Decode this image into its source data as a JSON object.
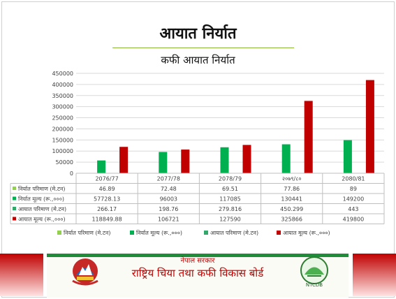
{
  "header": {
    "title": "आयात निर्यात",
    "subtitle": "कफी आयात निर्यात"
  },
  "footer": {
    "org_small": "नेपाल सरकार",
    "org_big": "राष्ट्रिय चिया तथा कफी विकास बोर्ड",
    "right_logo_text": "NTCDB"
  },
  "colors": {
    "series_light_green": "#92d050",
    "series_green": "#00b050",
    "series_teal_green": "#34a86a",
    "series_red": "#c00000",
    "accent_line": "#8bb73a"
  },
  "chart_data": {
    "type": "bar",
    "categories": [
      "2076/77",
      "2077/78",
      "2078/79",
      "२०७९/८०",
      "2080/81"
    ],
    "ylim": [
      0,
      450000
    ],
    "yticks": [
      "0",
      "50000",
      "100000",
      "150000",
      "200000",
      "250000",
      "300000",
      "350000",
      "400000",
      "450000"
    ],
    "legend_position": "bottom",
    "grid": true,
    "series": [
      {
        "name": "निर्यात परिमाण (मे.टन)",
        "color": "#92d050",
        "values": [
          46.89,
          72.48,
          69.51,
          77.86,
          89
        ],
        "labels": [
          "46.89",
          "72.48",
          "69.51",
          "77.86",
          "89"
        ]
      },
      {
        "name": "निर्यात मूल्य (रू.,०००)",
        "color": "#00b050",
        "values": [
          57728.13,
          96003,
          117085,
          130441,
          149200
        ],
        "labels": [
          "57728.13",
          "96003",
          "117085",
          "130441",
          "149200"
        ]
      },
      {
        "name": "आयात परिमाण (मे.टन)",
        "color": "#34a86a",
        "values": [
          266.17,
          198.76,
          279.816,
          450.299,
          443
        ],
        "labels": [
          "266.17",
          "198.76",
          "279.816",
          "450.299",
          "443"
        ]
      },
      {
        "name": "आयात मूल्य (रू.,०००)",
        "color": "#c00000",
        "values": [
          118849.88,
          106721,
          127590,
          325866,
          419800
        ],
        "labels": [
          "118849.88",
          "106721",
          "127590",
          "325866",
          "419800"
        ]
      }
    ]
  }
}
